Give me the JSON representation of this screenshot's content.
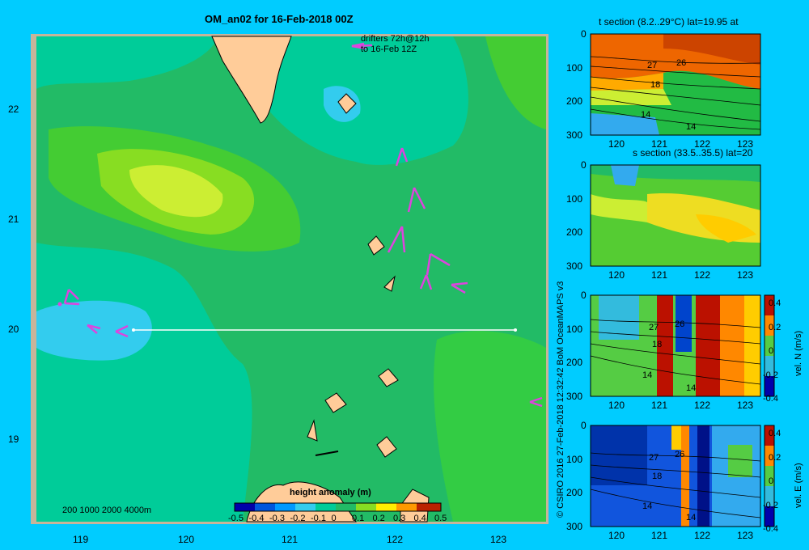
{
  "main_map": {
    "title": "OM_an02 for 16-Feb-2018 00Z",
    "drifter_note_line1": "drifters 72h@12h",
    "drifter_note_line2": "to 16-Feb 12Z",
    "depth_legend": "200  1000  2000  4000m",
    "colorbar_title": "height anomaly (m)",
    "colorbar_ticks": [
      "-0.5",
      "-0.4",
      "-0.3",
      "-0.2",
      "-0.1",
      "0",
      "0.1",
      "0.2",
      "0.3",
      "0.4",
      "0.5"
    ],
    "x_ticks": [
      "119",
      "120",
      "121",
      "122",
      "123"
    ],
    "y_ticks": [
      "22",
      "21",
      "20",
      "19"
    ],
    "colors": {
      "frame": "#c8b49a",
      "land": "#ffcc99",
      "section_line": "#ffffff",
      "drifter": "#dd44dd"
    }
  },
  "credit": "© CSIRO 2016   27-Feb-2018 12:32:42 BoM OceanMAPS v3",
  "panels": [
    {
      "title": "t section (8.2..29°C) lat=19.95 at",
      "y_ticks": [
        "0",
        "100",
        "200",
        "300"
      ],
      "x_ticks": [
        "120",
        "121",
        "122",
        "123"
      ],
      "contour_labels": [
        "27",
        "26",
        "18",
        "14",
        "14"
      ]
    },
    {
      "title": "s section (33.5..35.5) lat=20",
      "y_ticks": [
        "0",
        "100",
        "200",
        "300"
      ],
      "x_ticks": [
        "120",
        "121",
        "122",
        "123"
      ]
    },
    {
      "title": "",
      "y_ticks": [
        "0",
        "100",
        "200",
        "300"
      ],
      "x_ticks": [
        "120",
        "121",
        "122",
        "123"
      ],
      "contour_labels": [
        "27",
        "26",
        "18",
        "14",
        "14"
      ],
      "colorbar_label": "vel. N (m/s)",
      "colorbar_ticks": [
        "0.4",
        "0.2",
        "0",
        "-0.2",
        "-0.4"
      ]
    },
    {
      "title": "",
      "y_ticks": [
        "0",
        "100",
        "200",
        "300"
      ],
      "x_ticks": [
        "120",
        "121",
        "122",
        "123"
      ],
      "contour_labels": [
        "27",
        "26",
        "18",
        "14",
        "14"
      ],
      "colorbar_label": "vel. E (m/s)",
      "colorbar_ticks": [
        "0.4",
        "0.2",
        "0",
        "-0.2",
        "-0.4"
      ]
    }
  ]
}
